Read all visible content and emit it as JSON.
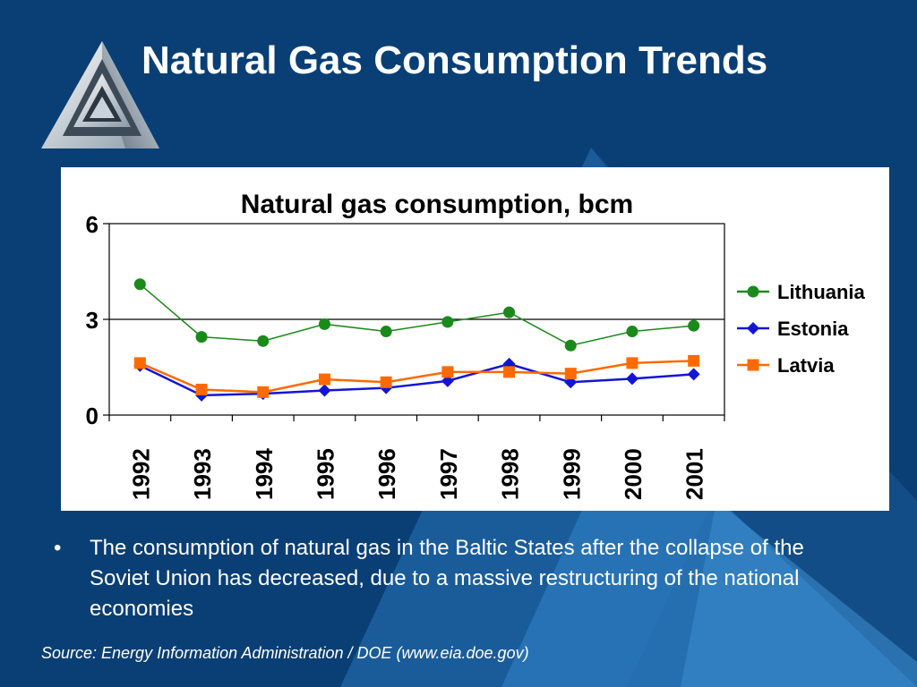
{
  "slide": {
    "title": "Natural Gas Consumption Trends",
    "bullet": "The consumption of natural gas in the Baltic States after the collapse of the Soviet Union has decreased, due to a massive restructuring of the national economies",
    "source": "Source: Energy Information Administration / DOE (www.eia.doe.gov)",
    "logo_icon": "triangle-logo-icon"
  },
  "colors": {
    "background": "#0a3f75",
    "background_accent": "#1e6fb0",
    "lithuania": "#1a8a1a",
    "estonia": "#1414d6",
    "latvia": "#ff6a00"
  },
  "chart_data": {
    "type": "line",
    "title": "Natural gas consumption, bcm",
    "xlabel": "",
    "ylabel": "",
    "categories": [
      "1992",
      "1993",
      "1994",
      "1995",
      "1996",
      "1997",
      "1998",
      "1999",
      "2000",
      "2001"
    ],
    "ylim": [
      0,
      6
    ],
    "yticks": [
      "0",
      "3",
      "6"
    ],
    "grid": "horizontal at 3",
    "legend_position": "right",
    "series": [
      {
        "name": "Lithuania",
        "marker": "circle",
        "color": "#1a8a1a",
        "values": [
          4.1,
          2.45,
          2.32,
          2.85,
          2.62,
          2.92,
          3.22,
          2.18,
          2.62,
          2.8
        ]
      },
      {
        "name": "Estonia",
        "marker": "diamond",
        "color": "#1414d6",
        "values": [
          1.55,
          0.62,
          0.67,
          0.77,
          0.85,
          1.07,
          1.6,
          1.03,
          1.14,
          1.28
        ]
      },
      {
        "name": "Latvia",
        "marker": "square",
        "color": "#ff6a00",
        "values": [
          1.63,
          0.8,
          0.72,
          1.12,
          1.03,
          1.35,
          1.35,
          1.3,
          1.63,
          1.7
        ]
      }
    ]
  }
}
